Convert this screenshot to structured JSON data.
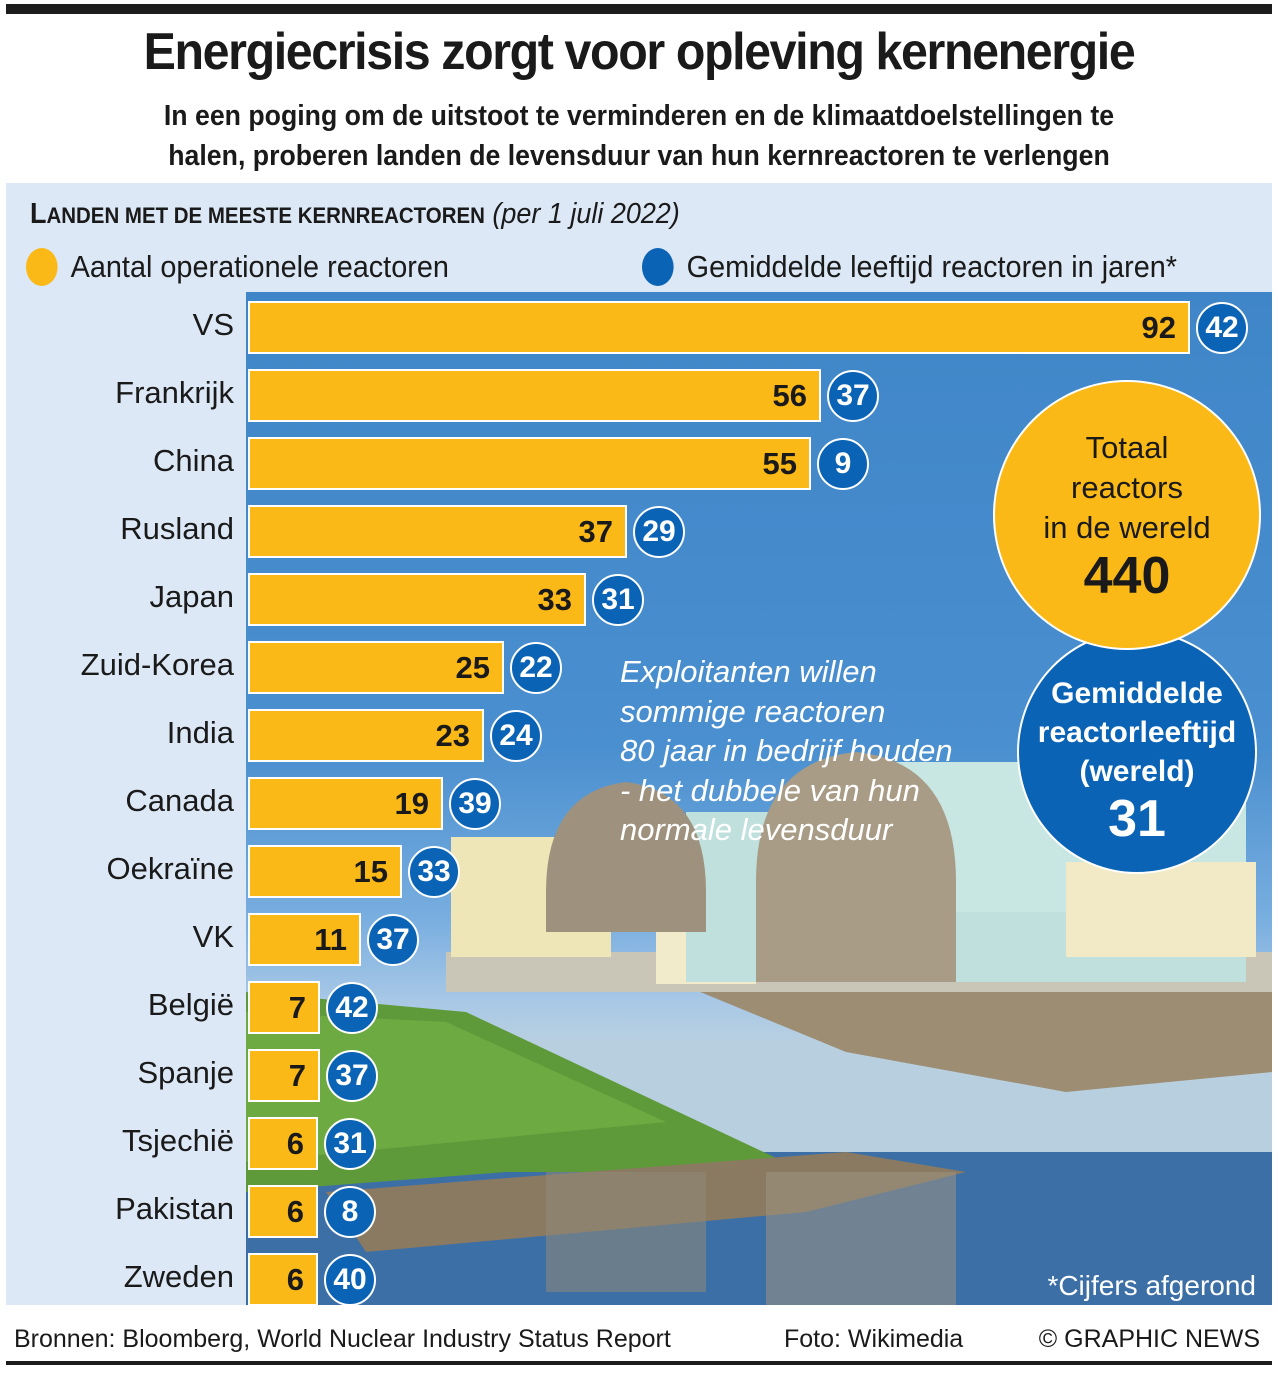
{
  "header": {
    "title": "Energiecrisis zorgt voor opleving kernenergie",
    "subtitle_line1": "In een poging om de uitstoot te verminderen en de klimaatdoelstellingen te",
    "subtitle_line2": "halen, proberen landen de levensduur van hun kernreactoren te verlengen"
  },
  "chart_header": {
    "first_letter": "L",
    "rest_smallcaps": "ANDEN MET DE MEESTE KERNREACTOREN",
    "date_note": "(per 1 juli 2022)"
  },
  "legend": [
    {
      "label": "Aantal operationele reactoren",
      "color": "#fbb917",
      "icon": "yellow-dot"
    },
    {
      "label": "Gemiddelde leeftijd reactoren in jaren*",
      "color": "#0a63b5",
      "icon": "blue-dot"
    }
  ],
  "colors": {
    "bar": "#fbb917",
    "age_badge": "#0a63b5",
    "panel_bg": "#dce8f6",
    "sky": "#4a8fcf"
  },
  "chart_data": {
    "type": "bar",
    "orientation": "horizontal",
    "title": "Landen met de meeste kernreactoren (per 1 juli 2022)",
    "xlabel": "",
    "ylabel": "",
    "xlim": [
      0,
      92
    ],
    "grid": false,
    "legend_position": "top",
    "categories": [
      "VS",
      "Frankrijk",
      "China",
      "Rusland",
      "Japan",
      "Zuid-Korea",
      "India",
      "Canada",
      "Oekraïne",
      "VK",
      "België",
      "Spanje",
      "Tsjechië",
      "Pakistan",
      "Zweden"
    ],
    "series": [
      {
        "name": "Aantal operationele reactoren",
        "values": [
          92,
          56,
          55,
          37,
          33,
          25,
          23,
          19,
          15,
          11,
          7,
          7,
          6,
          6,
          6
        ]
      },
      {
        "name": "Gemiddelde leeftijd reactoren in jaren*",
        "values": [
          42,
          37,
          9,
          29,
          31,
          22,
          24,
          39,
          33,
          37,
          42,
          37,
          31,
          8,
          40
        ]
      }
    ]
  },
  "totals": {
    "total_label_lines": [
      "Totaal",
      "reactors",
      "in de wereld"
    ],
    "total_value": "440",
    "age_label_lines": [
      "Gemiddelde",
      "reactorleeftijd",
      "(wereld)"
    ],
    "age_value": "31"
  },
  "annotation": {
    "lines": [
      "Exploitanten willen",
      "sommige reactoren",
      "80 jaar in bedrijf houden",
      "- het dubbele van hun",
      "normale levensduur"
    ]
  },
  "footnote": "*Cijfers afgerond",
  "footer": {
    "sources": "Bronnen: Bloomberg, World Nuclear Industry Status Report",
    "photo_credit": "Foto: Wikimedia",
    "copyright": "© GRAPHIC NEWS"
  }
}
